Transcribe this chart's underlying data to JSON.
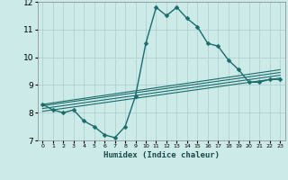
{
  "xlabel": "Humidex (Indice chaleur)",
  "ylabel": "",
  "bg_color": "#cceae8",
  "grid_color": "#aacccc",
  "line_color": "#1a6b6b",
  "xlim": [
    -0.5,
    23.5
  ],
  "ylim": [
    7,
    12
  ],
  "xticks": [
    0,
    1,
    2,
    3,
    4,
    5,
    6,
    7,
    8,
    9,
    10,
    11,
    12,
    13,
    14,
    15,
    16,
    17,
    18,
    19,
    20,
    21,
    22,
    23
  ],
  "yticks": [
    7,
    8,
    9,
    10,
    11,
    12
  ],
  "series": [
    {
      "x": [
        0,
        1,
        2,
        3,
        4,
        5,
        6,
        7,
        8,
        9,
        10,
        11,
        12,
        13,
        14,
        15,
        16,
        17,
        18,
        19,
        20,
        21,
        22,
        23
      ],
      "y": [
        8.3,
        8.1,
        8.0,
        8.1,
        7.7,
        7.5,
        7.2,
        7.1,
        7.5,
        8.6,
        10.5,
        11.8,
        11.5,
        11.8,
        11.4,
        11.1,
        10.5,
        10.4,
        9.9,
        9.55,
        9.1,
        9.1,
        9.2,
        9.2
      ],
      "marker": "D",
      "markersize": 2.5,
      "linewidth": 1.0
    },
    {
      "x": [
        0,
        23
      ],
      "y": [
        8.3,
        9.55
      ],
      "marker": null,
      "linewidth": 0.8
    },
    {
      "x": [
        0,
        23
      ],
      "y": [
        8.25,
        9.45
      ],
      "marker": null,
      "linewidth": 0.8
    },
    {
      "x": [
        0,
        23
      ],
      "y": [
        8.15,
        9.35
      ],
      "marker": null,
      "linewidth": 0.8
    },
    {
      "x": [
        0,
        23
      ],
      "y": [
        8.05,
        9.25
      ],
      "marker": null,
      "linewidth": 0.8
    }
  ]
}
